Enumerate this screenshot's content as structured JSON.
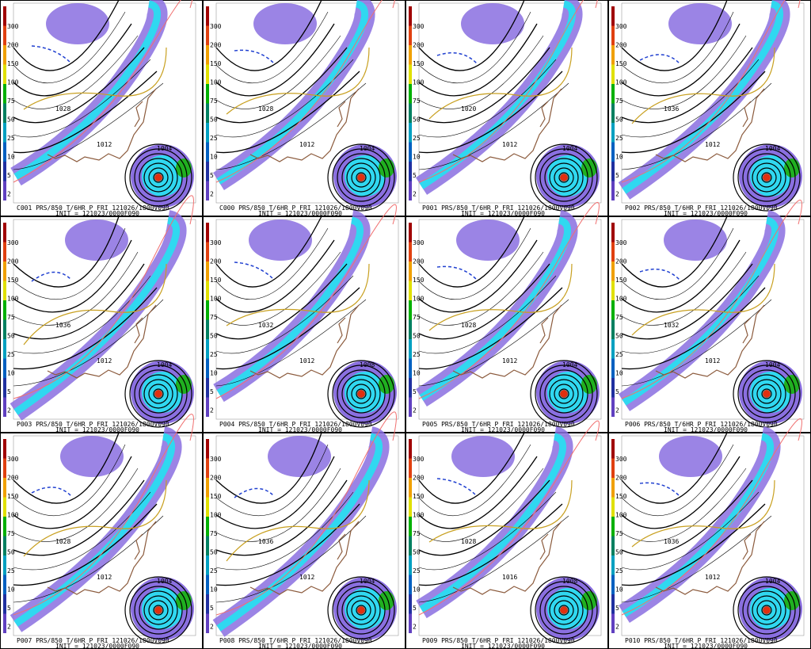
{
  "colorbar": {
    "labels": [
      "300",
      "200",
      "150",
      "100",
      "75",
      "50",
      "25",
      "10",
      "5",
      "2"
    ]
  },
  "panels": [
    {
      "member": "C001 PRS/850 T/6HR P FRI 121026/1800V090",
      "init": "INIT = 121023/0000F090",
      "pressure_labels": [
        "1004",
        "1012",
        "1028"
      ]
    },
    {
      "member": "C000 PRS/850 T/6HR P FRI 121026/1800V090",
      "init": "INIT = 121023/0000F090",
      "pressure_labels": [
        "1004",
        "1012",
        "1028"
      ]
    },
    {
      "member": "P001 PRS/850 T/6HR P FRI 121026/1800V090",
      "init": "INIT = 121023/0000F090",
      "pressure_labels": [
        "1004",
        "1012",
        "1020"
      ]
    },
    {
      "member": "P002 PRS/850 T/6HR P FRI 121026/1800V090",
      "init": "INIT = 121023/0000F090",
      "pressure_labels": [
        "1004",
        "1012",
        "1036"
      ]
    },
    {
      "member": "P003 PRS/850 T/6HR P FRI 121026/1800V090",
      "init": "INIT = 121023/0000F090",
      "pressure_labels": [
        "1004",
        "1012",
        "1036"
      ]
    },
    {
      "member": "P004 PRS/850 T/6HR P FRI 121026/1800V090",
      "init": "INIT = 121023/0000F090",
      "pressure_labels": [
        "1008",
        "1012",
        "1032"
      ]
    },
    {
      "member": "P005 PRS/850 T/6HR P FRI 121026/1800V090",
      "init": "INIT = 121023/0000F090",
      "pressure_labels": [
        "1004",
        "1012",
        "1028"
      ]
    },
    {
      "member": "P006 PRS/850 T/6HR P FRI 121026/1800V090",
      "init": "INIT = 121023/0000F090",
      "pressure_labels": [
        "1004",
        "1012",
        "1032"
      ]
    },
    {
      "member": "P007 PRS/850 T/6HR P FRI 121026/1800V090",
      "init": "INIT = 121023/0000F090",
      "pressure_labels": [
        "1004",
        "1012",
        "1028"
      ]
    },
    {
      "member": "P008 PRS/850 T/6HR P FRI 121026/1800V090",
      "init": "INIT = 121023/0000F090",
      "pressure_labels": [
        "1004",
        "1012",
        "1036"
      ]
    },
    {
      "member": "P009 PRS/850 T/6HR P FRI 121026/1800V090",
      "init": "INIT = 121023/0000F090",
      "pressure_labels": [
        "1008",
        "1016",
        "1028"
      ]
    },
    {
      "member": "P010 PRS/850 T/6HR P FRI 121026/1800V090",
      "init": "INIT = 121023/0000F090",
      "pressure_labels": [
        "1004",
        "1012",
        "1036"
      ]
    }
  ]
}
